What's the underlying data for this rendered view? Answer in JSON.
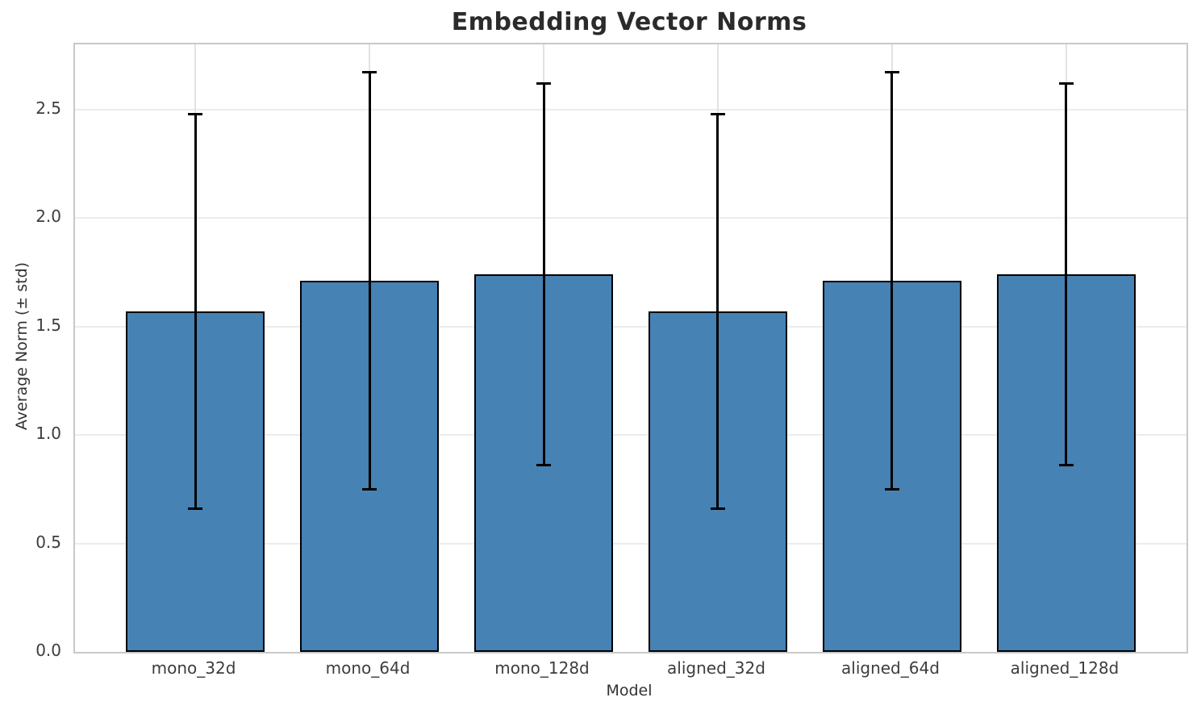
{
  "chart_data": {
    "type": "bar",
    "title": "Embedding Vector Norms",
    "xlabel": "Model",
    "ylabel": "Average Norm (± std)",
    "categories": [
      "mono_32d",
      "mono_64d",
      "mono_128d",
      "aligned_32d",
      "aligned_64d",
      "aligned_128d"
    ],
    "values": [
      1.57,
      1.71,
      1.74,
      1.57,
      1.71,
      1.74
    ],
    "errors": [
      0.91,
      0.96,
      0.88,
      0.91,
      0.96,
      0.88
    ],
    "error_tops": [
      2.48,
      2.67,
      2.62,
      2.48,
      2.67,
      2.62
    ],
    "error_bottoms": [
      0.66,
      0.75,
      0.86,
      0.66,
      0.75,
      0.86
    ],
    "ylim": [
      0,
      2.8
    ],
    "yticks": [
      0,
      0.5,
      1.0,
      1.5,
      2.0,
      2.5
    ],
    "ytick_labels": [
      "0.0",
      "0.5",
      "1.0",
      "1.5",
      "2.0",
      "2.5"
    ],
    "grid": true,
    "legend": null,
    "bar_color": "#4682b4",
    "bar_edge_color": "#000000",
    "error_color": "#000000"
  }
}
